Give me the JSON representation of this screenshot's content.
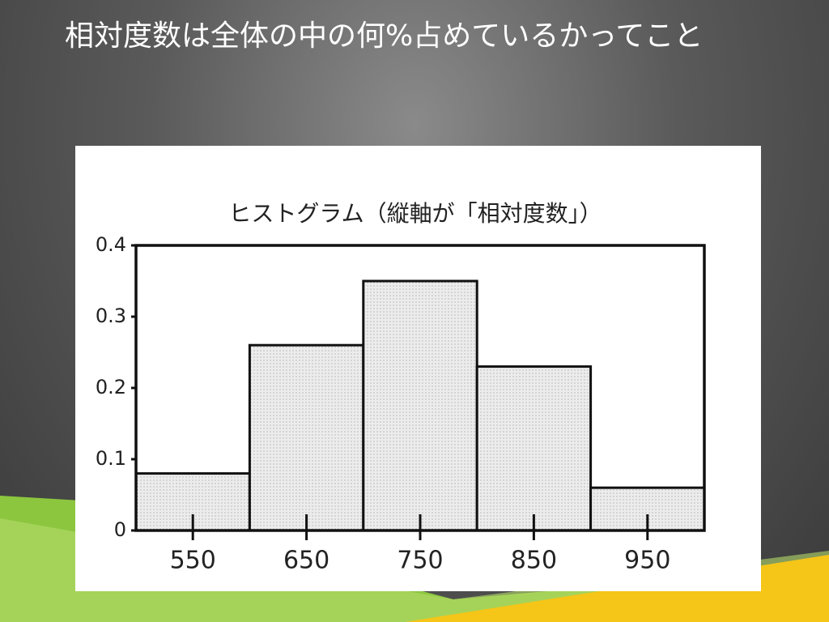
{
  "slide_title": "相対度数は全体の中の何%占めているかってこと",
  "chart_data": {
    "type": "histogram",
    "title": "ヒストグラム（縦軸が「相対度数」）",
    "bins": [
      500,
      600,
      700,
      800,
      900,
      1000
    ],
    "values": [
      0.08,
      0.26,
      0.35,
      0.23,
      0.06
    ],
    "color": "#e6e6e6",
    "xlim": [
      500,
      1000
    ],
    "xticks": [
      550,
      650,
      750,
      850,
      950
    ],
    "ylim": [
      0,
      0.4
    ],
    "yticks": [
      0,
      0.1,
      0.2,
      0.3,
      0.4
    ],
    "grid": false
  }
}
